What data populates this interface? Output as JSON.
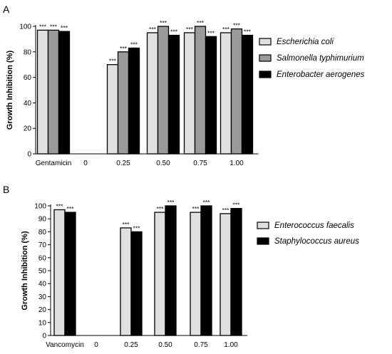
{
  "chart_data": [
    {
      "type": "bar",
      "panel_label": "A",
      "ylabel": "Growth Inhibition (%)",
      "ylim": [
        0,
        100
      ],
      "yticks": [
        0,
        20,
        40,
        60,
        80,
        100
      ],
      "categories": [
        "Gentamicin",
        "0",
        "0.25",
        "0.50",
        "0.75",
        "1.00"
      ],
      "legend_position": "right",
      "series": [
        {
          "name": "Escherichia coli",
          "color": "#e0e0e0",
          "values": [
            97,
            0,
            70,
            95,
            95,
            95
          ],
          "significance": [
            "***",
            "",
            "***",
            "***",
            "***",
            "***"
          ]
        },
        {
          "name": "Salmonella typhimurium",
          "color": "#9a9a9a",
          "values": [
            97,
            0,
            80,
            100,
            100,
            98
          ],
          "significance": [
            "***",
            "",
            "***",
            "***",
            "***",
            "***"
          ]
        },
        {
          "name": "Enterobacter aerogenes",
          "color": "#000000",
          "values": [
            96,
            0,
            83,
            93,
            92,
            93
          ],
          "significance": [
            "***",
            "",
            "***",
            "***",
            "***",
            "***"
          ]
        }
      ]
    },
    {
      "type": "bar",
      "panel_label": "B",
      "ylabel": "Growth Inhibition (%)",
      "ylim": [
        0,
        100
      ],
      "yticks": [
        0,
        10,
        20,
        30,
        40,
        50,
        60,
        70,
        80,
        90,
        100
      ],
      "categories": [
        "Vancomycin",
        "0",
        "0.25",
        "0.50",
        "0.75",
        "1.00"
      ],
      "legend_position": "right",
      "series": [
        {
          "name": "Enterococcus faecalis",
          "color": "#e0e0e0",
          "values": [
            97,
            0,
            83,
            95,
            95,
            94
          ],
          "significance": [
            "***",
            "",
            "***",
            "***",
            "***",
            "***"
          ]
        },
        {
          "name": "Staphylococcus aureus",
          "color": "#000000",
          "values": [
            95,
            0,
            80,
            100,
            100,
            98
          ],
          "significance": [
            "***",
            "",
            "***",
            "***",
            "***",
            "***"
          ]
        }
      ]
    }
  ]
}
